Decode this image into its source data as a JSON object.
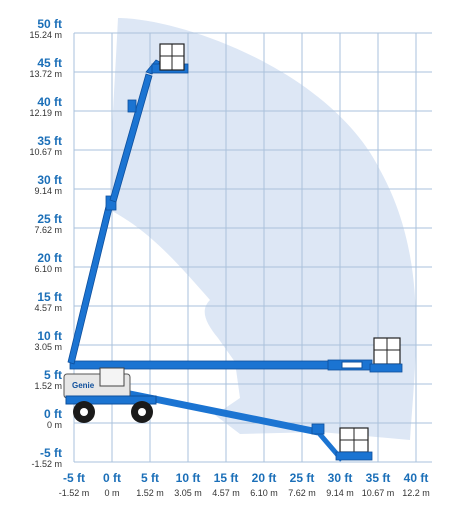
{
  "colors": {
    "envelope": "#dde7f5",
    "grid": "#aac2dc",
    "boom": "#1b74d2",
    "boom_edge": "#0e4f9c",
    "tick_ft": "#1b6fb8",
    "tick_m": "#333333"
  },
  "y_axis": {
    "ticks": [
      {
        "ft": "50 ft",
        "m": "15.24 m",
        "v": 50
      },
      {
        "ft": "45 ft",
        "m": "13.72 m",
        "v": 45
      },
      {
        "ft": "40 ft",
        "m": "12.19 m",
        "v": 40
      },
      {
        "ft": "35 ft",
        "m": "10.67 m",
        "v": 35
      },
      {
        "ft": "30 ft",
        "m": "9.14 m",
        "v": 30
      },
      {
        "ft": "25 ft",
        "m": "7.62 m",
        "v": 25
      },
      {
        "ft": "20 ft",
        "m": "6.10 m",
        "v": 20
      },
      {
        "ft": "15 ft",
        "m": "4.57 m",
        "v": 15
      },
      {
        "ft": "10 ft",
        "m": "3.05 m",
        "v": 10
      },
      {
        "ft": "5 ft",
        "m": "1.52 m",
        "v": 5
      },
      {
        "ft": "0 ft",
        "m": "0 m",
        "v": 0
      },
      {
        "ft": "-5 ft",
        "m": "-1.52 m",
        "v": -5
      }
    ]
  },
  "x_axis": {
    "ticks": [
      {
        "ft": "-5 ft",
        "m": "-1.52 m",
        "v": -5
      },
      {
        "ft": "0 ft",
        "m": "0 m",
        "v": 0
      },
      {
        "ft": "5 ft",
        "m": "1.52 m",
        "v": 5
      },
      {
        "ft": "10 ft",
        "m": "3.05 m",
        "v": 10
      },
      {
        "ft": "15 ft",
        "m": "4.57 m",
        "v": 15
      },
      {
        "ft": "20 ft",
        "m": "6.10 m",
        "v": 20
      },
      {
        "ft": "25 ft",
        "m": "7.62 m",
        "v": 25
      },
      {
        "ft": "30 ft",
        "m": "9.14 m",
        "v": 30
      },
      {
        "ft": "35 ft",
        "m": "10.67 m",
        "v": 35
      },
      {
        "ft": "40 ft",
        "m": "12.2 m",
        "v": 40
      }
    ]
  },
  "machine": {
    "brand": "Genie"
  }
}
